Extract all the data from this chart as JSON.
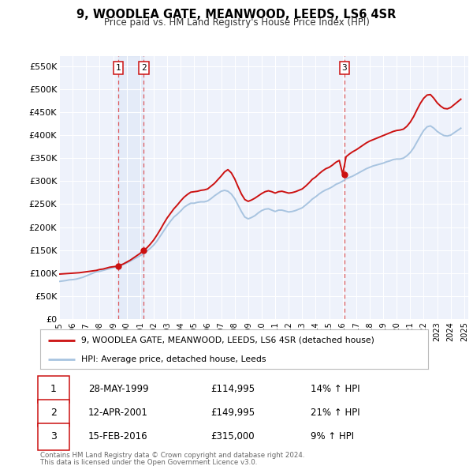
{
  "title": "9, WOODLEA GATE, MEANWOOD, LEEDS, LS6 4SR",
  "subtitle": "Price paid vs. HM Land Registry's House Price Index (HPI)",
  "plot_bg_color": "#eef2fb",
  "hpi_color": "#a8c4e0",
  "price_color": "#cc1111",
  "vline_color": "#dd4444",
  "shade_color": "#c8d8f0",
  "yticks": [
    0,
    50000,
    100000,
    150000,
    200000,
    250000,
    300000,
    350000,
    400000,
    450000,
    500000,
    550000
  ],
  "ytick_labels": [
    "£0",
    "£50K",
    "£100K",
    "£150K",
    "£200K",
    "£250K",
    "£300K",
    "£350K",
    "£400K",
    "£450K",
    "£500K",
    "£550K"
  ],
  "xmin": 1995.0,
  "xmax": 2025.3,
  "ymin": 0,
  "ymax": 572000,
  "transactions": [
    {
      "label": "1",
      "date": "28-MAY-1999",
      "year": 1999.38,
      "price": 114995,
      "pct": "14%",
      "dir": "↑"
    },
    {
      "label": "2",
      "date": "12-APR-2001",
      "year": 2001.27,
      "price": 149995,
      "pct": "21%",
      "dir": "↑"
    },
    {
      "label": "3",
      "date": "15-FEB-2016",
      "year": 2016.12,
      "price": 315000,
      "pct": "9%",
      "dir": "↑"
    }
  ],
  "legend_price_label": "9, WOODLEA GATE, MEANWOOD, LEEDS, LS6 4SR (detached house)",
  "legend_hpi_label": "HPI: Average price, detached house, Leeds",
  "footer1": "Contains HM Land Registry data © Crown copyright and database right 2024.",
  "footer2": "This data is licensed under the Open Government Licence v3.0.",
  "hpi_data_x": [
    1995.0,
    1995.25,
    1995.5,
    1995.75,
    1996.0,
    1996.25,
    1996.5,
    1996.75,
    1997.0,
    1997.25,
    1997.5,
    1997.75,
    1998.0,
    1998.25,
    1998.5,
    1998.75,
    1999.0,
    1999.25,
    1999.5,
    1999.75,
    2000.0,
    2000.25,
    2000.5,
    2000.75,
    2001.0,
    2001.25,
    2001.5,
    2001.75,
    2002.0,
    2002.25,
    2002.5,
    2002.75,
    2003.0,
    2003.25,
    2003.5,
    2003.75,
    2004.0,
    2004.25,
    2004.5,
    2004.75,
    2005.0,
    2005.25,
    2005.5,
    2005.75,
    2006.0,
    2006.25,
    2006.5,
    2006.75,
    2007.0,
    2007.25,
    2007.5,
    2007.75,
    2008.0,
    2008.25,
    2008.5,
    2008.75,
    2009.0,
    2009.25,
    2009.5,
    2009.75,
    2010.0,
    2010.25,
    2010.5,
    2010.75,
    2011.0,
    2011.25,
    2011.5,
    2011.75,
    2012.0,
    2012.25,
    2012.5,
    2012.75,
    2013.0,
    2013.25,
    2013.5,
    2013.75,
    2014.0,
    2014.25,
    2014.5,
    2014.75,
    2015.0,
    2015.25,
    2015.5,
    2015.75,
    2016.0,
    2016.25,
    2016.5,
    2016.75,
    2017.0,
    2017.25,
    2017.5,
    2017.75,
    2018.0,
    2018.25,
    2018.5,
    2018.75,
    2019.0,
    2019.25,
    2019.5,
    2019.75,
    2020.0,
    2020.25,
    2020.5,
    2020.75,
    2021.0,
    2021.25,
    2021.5,
    2021.75,
    2022.0,
    2022.25,
    2022.5,
    2022.75,
    2023.0,
    2023.25,
    2023.5,
    2023.75,
    2024.0,
    2024.25,
    2024.5,
    2024.75
  ],
  "hpi_data_y": [
    82000,
    83000,
    84000,
    85500,
    86000,
    87000,
    89000,
    91000,
    94000,
    97000,
    100000,
    103000,
    104000,
    106000,
    108000,
    110000,
    112000,
    113000,
    116000,
    119000,
    122000,
    126000,
    130000,
    134000,
    138000,
    142000,
    148000,
    154000,
    161000,
    170000,
    181000,
    192000,
    203000,
    213000,
    222000,
    228000,
    235000,
    243000,
    248000,
    252000,
    252000,
    254000,
    255000,
    255000,
    257000,
    262000,
    268000,
    273000,
    278000,
    280000,
    278000,
    272000,
    262000,
    248000,
    234000,
    222000,
    218000,
    221000,
    225000,
    231000,
    236000,
    239000,
    240000,
    237000,
    234000,
    237000,
    237000,
    235000,
    233000,
    234000,
    236000,
    239000,
    242000,
    248000,
    254000,
    261000,
    266000,
    272000,
    277000,
    281000,
    284000,
    288000,
    293000,
    296000,
    300000,
    305000,
    308000,
    311000,
    315000,
    319000,
    323000,
    327000,
    330000,
    333000,
    335000,
    337000,
    339000,
    342000,
    344000,
    347000,
    348000,
    348000,
    350000,
    355000,
    362000,
    372000,
    385000,
    398000,
    410000,
    418000,
    420000,
    415000,
    408000,
    403000,
    399000,
    398000,
    400000,
    405000,
    410000,
    415000
  ],
  "price_data_x": [
    1995.0,
    1995.25,
    1995.5,
    1995.75,
    1996.0,
    1996.25,
    1996.5,
    1996.75,
    1997.0,
    1997.25,
    1997.5,
    1997.75,
    1998.0,
    1998.25,
    1998.5,
    1998.75,
    1999.0,
    1999.25,
    1999.5,
    1999.75,
    2000.0,
    2000.25,
    2000.5,
    2000.75,
    2001.0,
    2001.25,
    2001.5,
    2001.75,
    2002.0,
    2002.25,
    2002.5,
    2002.75,
    2003.0,
    2003.25,
    2003.5,
    2003.75,
    2004.0,
    2004.25,
    2004.5,
    2004.75,
    2005.0,
    2005.25,
    2005.5,
    2005.75,
    2006.0,
    2006.25,
    2006.5,
    2006.75,
    2007.0,
    2007.25,
    2007.5,
    2007.75,
    2008.0,
    2008.25,
    2008.5,
    2008.75,
    2009.0,
    2009.25,
    2009.5,
    2009.75,
    2010.0,
    2010.25,
    2010.5,
    2010.75,
    2011.0,
    2011.25,
    2011.5,
    2011.75,
    2012.0,
    2012.25,
    2012.5,
    2012.75,
    2013.0,
    2013.25,
    2013.5,
    2013.75,
    2014.0,
    2014.25,
    2014.5,
    2014.75,
    2015.0,
    2015.25,
    2015.5,
    2015.75,
    2016.0,
    2016.25,
    2016.5,
    2016.75,
    2017.0,
    2017.25,
    2017.5,
    2017.75,
    2018.0,
    2018.25,
    2018.5,
    2018.75,
    2019.0,
    2019.25,
    2019.5,
    2019.75,
    2020.0,
    2020.25,
    2020.5,
    2020.75,
    2021.0,
    2021.25,
    2021.5,
    2021.75,
    2022.0,
    2022.25,
    2022.5,
    2022.75,
    2023.0,
    2023.25,
    2023.5,
    2023.75,
    2024.0,
    2024.25,
    2024.5,
    2024.75
  ],
  "price_data_y": [
    98000,
    98500,
    99000,
    99500,
    100000,
    100500,
    101000,
    102000,
    103000,
    104000,
    105000,
    106000,
    108000,
    109000,
    111000,
    113000,
    113995,
    114995,
    117000,
    120000,
    124000,
    128000,
    133000,
    138000,
    143000,
    149995,
    155000,
    163000,
    172000,
    183000,
    195000,
    208000,
    220000,
    230000,
    240000,
    248000,
    257000,
    265000,
    271000,
    276000,
    277000,
    278000,
    280000,
    281000,
    283000,
    289000,
    295000,
    303000,
    311000,
    320000,
    325000,
    318000,
    305000,
    288000,
    272000,
    260000,
    256000,
    259000,
    263000,
    268000,
    273000,
    277000,
    279000,
    277000,
    274000,
    277000,
    278000,
    276000,
    274000,
    275000,
    277000,
    280000,
    283000,
    289000,
    296000,
    304000,
    309000,
    316000,
    322000,
    327000,
    330000,
    335000,
    341000,
    345000,
    315000,
    353000,
    359000,
    364000,
    368000,
    373000,
    378000,
    383000,
    387000,
    390000,
    393000,
    396000,
    399000,
    402000,
    405000,
    408000,
    410000,
    411000,
    413000,
    419000,
    428000,
    440000,
    455000,
    469000,
    480000,
    487000,
    488000,
    480000,
    470000,
    463000,
    458000,
    457000,
    460000,
    466000,
    472000,
    478000
  ]
}
